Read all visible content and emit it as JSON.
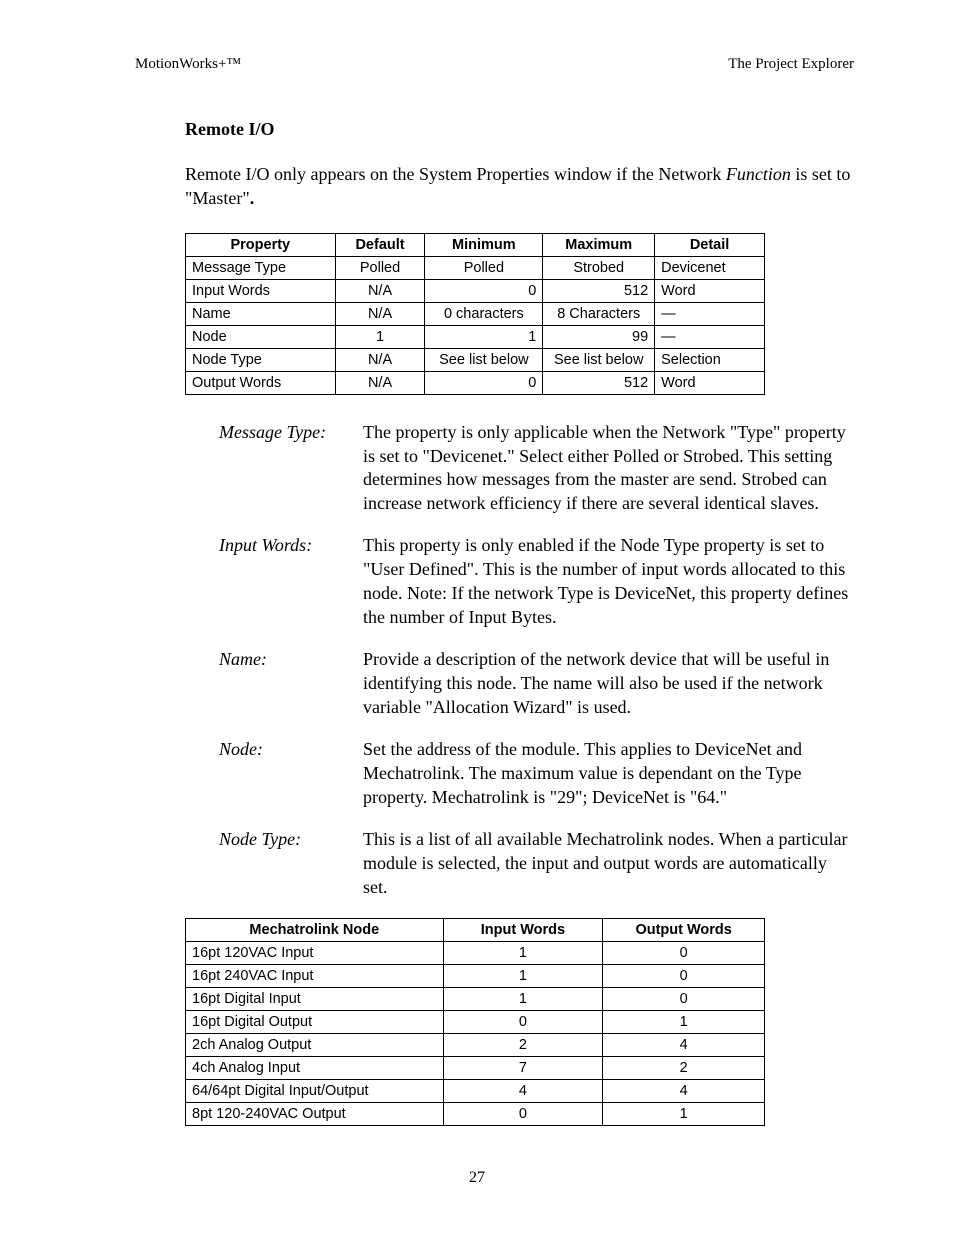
{
  "header": {
    "left": "MotionWorks+™",
    "right": "The Project Explorer"
  },
  "section_title": "Remote I/O",
  "intro_pre": "Remote I/O only appears on the System Properties window if the Network ",
  "intro_italic": "Function",
  "intro_post": " is set to \"Master\"",
  "intro_period": ".",
  "table1": {
    "headers": [
      "Property",
      "Default",
      "Minimum",
      "Maximum",
      "Detail"
    ],
    "rows": [
      [
        "Message Type",
        "Polled",
        "Polled",
        "Strobed",
        "Devicenet"
      ],
      [
        "Input Words",
        "N/A",
        "0",
        "512",
        "Word"
      ],
      [
        "Name",
        "N/A",
        "0 characters",
        "8 Characters",
        "—"
      ],
      [
        "Node",
        "1",
        "1",
        "99",
        "—"
      ],
      [
        "Node Type",
        "N/A",
        "See list below",
        "See list below",
        "Selection"
      ],
      [
        "Output Words",
        "N/A",
        "0",
        "512",
        "Word"
      ]
    ],
    "row_min_align": [
      "center",
      "right",
      "center",
      "right",
      "center",
      "right"
    ],
    "row_max_align": [
      "center",
      "right",
      "center",
      "right",
      "center",
      "right"
    ]
  },
  "defs": [
    {
      "term": "Message Type",
      "body": "The property is only applicable when the Network \"Type\" property is set to \"Devicenet.\"  Select either Polled or Strobed.  This setting determines how messages from the master are send.  Strobed can increase network efficiency if there are several identical slaves."
    },
    {
      "term": "Input Words",
      "body": "This property is only enabled if the Node Type property is set to \"User Defined\".  This is the number of input words allocated to this node.  Note:  If the network Type is DeviceNet, this property defines the number of Input Bytes."
    },
    {
      "term": "Name",
      "body": "Provide a description of the network device that will be useful in identifying this node.  The name will also be used if the network variable \"Allocation Wizard\" is used."
    },
    {
      "term": "Node",
      "body": "Set the address of the module.  This applies to DeviceNet and Mechatrolink.  The maximum value is dependant on the Type property.  Mechatrolink is \"29\"; DeviceNet is \"64.\""
    },
    {
      "term": "Node Type",
      "body": "This is a list of all available Mechatrolink nodes.  When a particular module is selected, the input and output words are automatically set."
    }
  ],
  "table2": {
    "headers": [
      "Mechatrolink Node",
      "Input Words",
      "Output Words"
    ],
    "rows": [
      [
        "16pt 120VAC Input",
        "1",
        "0"
      ],
      [
        "16pt 240VAC Input",
        "1",
        "0"
      ],
      [
        "16pt Digital Input",
        "1",
        "0"
      ],
      [
        "16pt Digital Output",
        "0",
        "1"
      ],
      [
        "2ch Analog Output",
        "2",
        "4"
      ],
      [
        "4ch Analog Input",
        "7",
        "2"
      ],
      [
        "64/64pt Digital Input/Output",
        "4",
        "4"
      ],
      [
        "8pt 120-240VAC Output",
        "0",
        "1"
      ]
    ]
  },
  "page_number": "27"
}
